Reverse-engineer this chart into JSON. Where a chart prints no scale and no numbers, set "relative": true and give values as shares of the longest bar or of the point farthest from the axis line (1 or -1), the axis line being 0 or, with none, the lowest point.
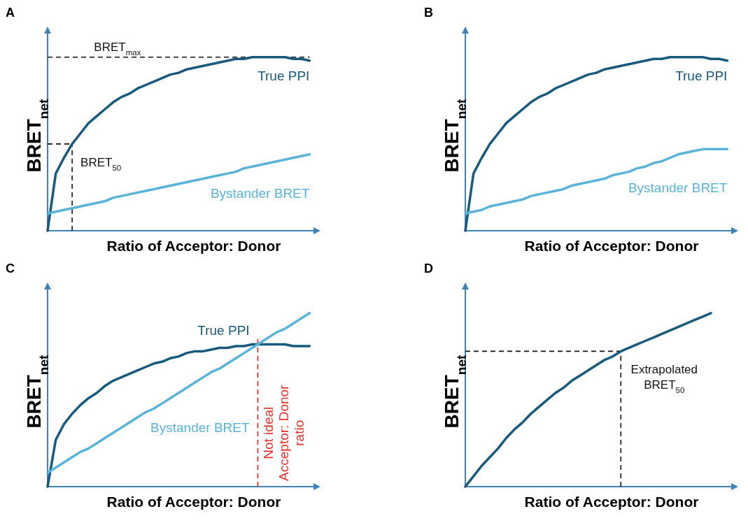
{
  "chart_data": [
    {
      "type": "line",
      "title": "A",
      "xlabel": "Ratio of Acceptor: Donor",
      "ylabel": "BRET$_{net}$",
      "relative": true,
      "categories": [
        null,
        null,
        null,
        null,
        null,
        null,
        null,
        null,
        null,
        null,
        null,
        null,
        null,
        null,
        null,
        null,
        null,
        null,
        null,
        null,
        null,
        null,
        null,
        null,
        null,
        null,
        null,
        null,
        null,
        null,
        null,
        null,
        null
      ],
      "series": [
        {
          "name": "True PPI",
          "color": "#175a7d",
          "values": [
            0,
            0.33,
            0.42,
            0.5,
            0.56,
            0.62,
            0.66,
            0.7,
            0.74,
            0.77,
            0.79,
            0.82,
            0.84,
            0.86,
            0.88,
            0.9,
            0.91,
            0.93,
            0.94,
            0.95,
            0.96,
            0.97,
            0.98,
            0.99,
            0.99,
            1,
            1,
            1,
            1,
            1,
            0.99,
            0.99,
            0.98
          ]
        },
        {
          "name": "Bystander BRET",
          "color": "#5ab4d9",
          "values": [
            0.1,
            0.11,
            0.12,
            0.13,
            0.14,
            0.15,
            0.16,
            0.17,
            0.19,
            0.2,
            0.21,
            0.22,
            0.23,
            0.24,
            0.25,
            0.26,
            0.27,
            0.28,
            0.29,
            0.3,
            0.31,
            0.32,
            0.33,
            0.34,
            0.36,
            0.37,
            0.38,
            0.39,
            0.4,
            0.41,
            0.42,
            0.43,
            0.44
          ]
        }
      ],
      "ref_lines": [
        {
          "axis": "y",
          "value": 1,
          "label": "BRET$_{max}$"
        },
        {
          "axis": "y",
          "value": 0.5,
          "label": "BRET$_{50}$"
        }
      ]
    },
    {
      "type": "line",
      "title": "B",
      "xlabel": "Ratio of Acceptor: Donor",
      "ylabel": "BRET$_{net}$",
      "relative": true,
      "categories": [
        null,
        null,
        null,
        null,
        null,
        null,
        null,
        null,
        null,
        null,
        null,
        null,
        null,
        null,
        null,
        null,
        null,
        null,
        null,
        null,
        null,
        null,
        null,
        null,
        null,
        null,
        null,
        null,
        null,
        null,
        null,
        null,
        null
      ],
      "series": [
        {
          "name": "True PPI",
          "color": "#175a7d",
          "values": [
            0,
            0.33,
            0.42,
            0.5,
            0.56,
            0.62,
            0.66,
            0.7,
            0.74,
            0.77,
            0.79,
            0.82,
            0.84,
            0.86,
            0.88,
            0.9,
            0.91,
            0.93,
            0.94,
            0.95,
            0.96,
            0.97,
            0.98,
            0.99,
            0.99,
            1,
            1,
            1,
            1,
            1,
            0.99,
            0.99,
            0.98
          ]
        },
        {
          "name": "Bystander BRET",
          "color": "#5ab4d9",
          "values": [
            0.1,
            0.11,
            0.12,
            0.14,
            0.15,
            0.16,
            0.17,
            0.18,
            0.2,
            0.21,
            0.22,
            0.23,
            0.24,
            0.26,
            0.27,
            0.28,
            0.29,
            0.3,
            0.32,
            0.33,
            0.34,
            0.36,
            0.37,
            0.39,
            0.4,
            0.42,
            0.44,
            0.45,
            0.46,
            0.47,
            0.47,
            0.47,
            0.47
          ]
        }
      ]
    },
    {
      "type": "line",
      "title": "C",
      "xlabel": "Ratio of Acceptor: Donor",
      "ylabel": "BRET$_{net}$",
      "relative": true,
      "categories": [
        null,
        null,
        null,
        null,
        null,
        null,
        null,
        null,
        null,
        null,
        null,
        null,
        null,
        null,
        null,
        null,
        null,
        null,
        null,
        null,
        null,
        null,
        null,
        null,
        null,
        null,
        null,
        null,
        null,
        null,
        null,
        null,
        null
      ],
      "series": [
        {
          "name": "True PPI",
          "color": "#175a7d",
          "values": [
            0,
            0.27,
            0.36,
            0.42,
            0.47,
            0.51,
            0.54,
            0.58,
            0.61,
            0.63,
            0.65,
            0.67,
            0.69,
            0.71,
            0.72,
            0.74,
            0.75,
            0.77,
            0.78,
            0.78,
            0.79,
            0.8,
            0.8,
            0.81,
            0.81,
            0.82,
            0.82,
            0.82,
            0.82,
            0.82,
            0.81,
            0.81,
            0.81
          ]
        },
        {
          "name": "Bystander BRET",
          "color": "#5ab4d9",
          "values": [
            0.08,
            0.11,
            0.14,
            0.17,
            0.2,
            0.22,
            0.25,
            0.28,
            0.31,
            0.34,
            0.37,
            0.4,
            0.43,
            0.45,
            0.48,
            0.51,
            0.54,
            0.57,
            0.6,
            0.63,
            0.66,
            0.68,
            0.71,
            0.74,
            0.77,
            0.8,
            0.83,
            0.86,
            0.89,
            0.91,
            0.94,
            0.97,
            1
          ]
        }
      ],
      "annotations": [
        "Not ideal Acceptor: Donor ratio"
      ]
    },
    {
      "type": "line",
      "title": "D",
      "xlabel": "Ratio of Acceptor: Donor",
      "ylabel": "BRET$_{net}$",
      "relative": true,
      "categories": [
        null,
        null,
        null,
        null,
        null,
        null,
        null,
        null,
        null,
        null,
        null,
        null,
        null,
        null,
        null,
        null,
        null,
        null,
        null,
        null,
        null,
        null,
        null,
        null,
        null,
        null,
        null,
        null,
        null,
        null,
        null
      ],
      "series": [
        {
          "color": "#175a7d",
          "values": [
            0,
            0.06,
            0.12,
            0.17,
            0.22,
            0.28,
            0.33,
            0.37,
            0.42,
            0.46,
            0.5,
            0.54,
            0.57,
            0.61,
            0.64,
            0.67,
            0.7,
            0.73,
            0.75,
            0.78,
            0.8,
            0.82,
            0.84,
            0.86,
            0.88,
            0.9,
            0.92,
            0.94,
            0.96,
            0.98,
            1
          ]
        }
      ],
      "ref_lines": [
        {
          "axis": "y",
          "value": 0.78,
          "label": "Extrapolated BRET$_{50}$"
        }
      ]
    }
  ]
}
